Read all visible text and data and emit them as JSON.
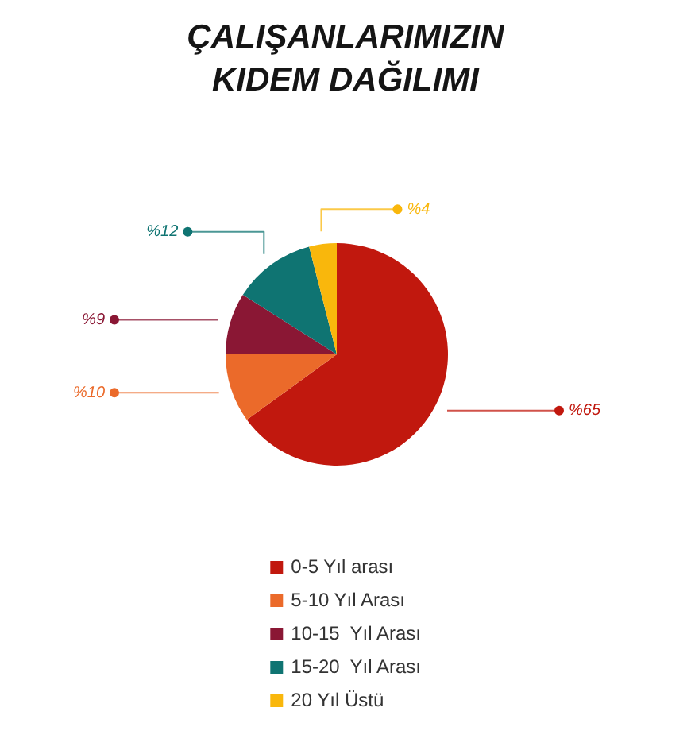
{
  "chart_data": {
    "type": "pie",
    "title": "ÇALIŞANLARIMIZIN KIDEM DAĞILIMI",
    "categories": [
      "0-5 Yıl arası",
      "5-10 Yıl Arası",
      "10-15  Yıl Arası",
      "15-20  Yıl Arası",
      "20 Yıl Üstü"
    ],
    "values": [
      65,
      10,
      9,
      12,
      4
    ],
    "colors": [
      "#c1180e",
      "#eb6a2a",
      "#8a1734",
      "#0f7472",
      "#f9b70c"
    ],
    "value_labels": [
      "%65",
      "%10",
      "%9",
      "%12",
      "%4"
    ],
    "legend": "bottom"
  }
}
